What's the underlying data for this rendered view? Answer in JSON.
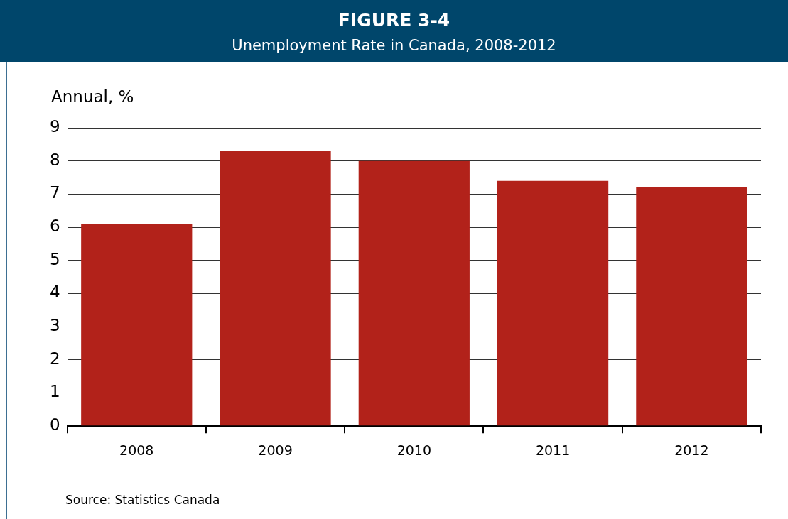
{
  "chart_data": {
    "type": "bar",
    "title": "FIGURE 3-4",
    "subtitle": "Unemployment Rate in Canada, 2008-2012",
    "ylabel": "Annual, %",
    "categories": [
      "2008",
      "2009",
      "2010",
      "2011",
      "2012"
    ],
    "values": [
      6.1,
      8.3,
      8.0,
      7.4,
      7.2
    ],
    "color": "#b2221a",
    "ylim": [
      0,
      9
    ],
    "yticks": [
      0,
      1,
      2,
      3,
      4,
      5,
      6,
      7,
      8,
      9
    ],
    "grid": "y",
    "legend": false,
    "annotations": [
      "Source: Statistics Canada"
    ]
  }
}
